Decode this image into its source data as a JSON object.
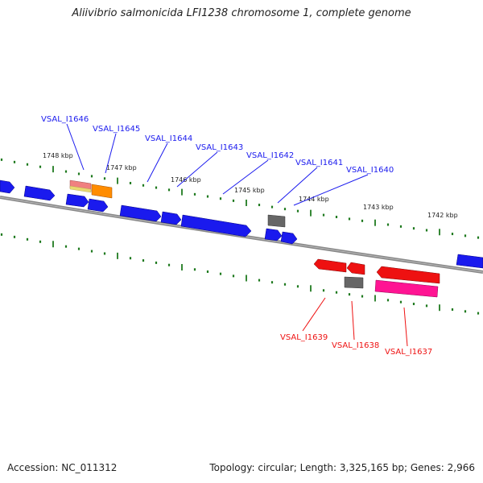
{
  "title": "Aliivibrio salmonicida LFI1238 chromosome 1, complete genome",
  "accession_text": "Accession: NC_011312",
  "topology_text": "Topology: circular; Length: 3,325,165 bp; Genes: 2,966",
  "ticks": [
    {
      "label": "1748 kbp"
    },
    {
      "label": "1747 kbp"
    },
    {
      "label": "1746 kbp"
    },
    {
      "label": "1745 kbp"
    },
    {
      "label": "1744 kbp"
    },
    {
      "label": "1743 kbp"
    },
    {
      "label": "1742 kbp"
    }
  ],
  "genes_top": [
    {
      "name": "VSAL_I1646"
    },
    {
      "name": "VSAL_I1645"
    },
    {
      "name": "VSAL_I1644"
    },
    {
      "name": "VSAL_I1643"
    },
    {
      "name": "VSAL_I1642"
    },
    {
      "name": "VSAL_I1641"
    },
    {
      "name": "VSAL_I1640"
    }
  ],
  "genes_bottom": [
    {
      "name": "VSAL_I1639"
    },
    {
      "name": "VSAL_I1638"
    },
    {
      "name": "VSAL_I1637"
    }
  ],
  "colors": {
    "forward": "#0000ee",
    "reverse": "#ee0000",
    "pseudo": "#666666",
    "rna": "#ff8c00",
    "pink": "#ff1493",
    "salmon": "#f08080",
    "tick": "#1f7a1f",
    "axis": "#888888"
  }
}
